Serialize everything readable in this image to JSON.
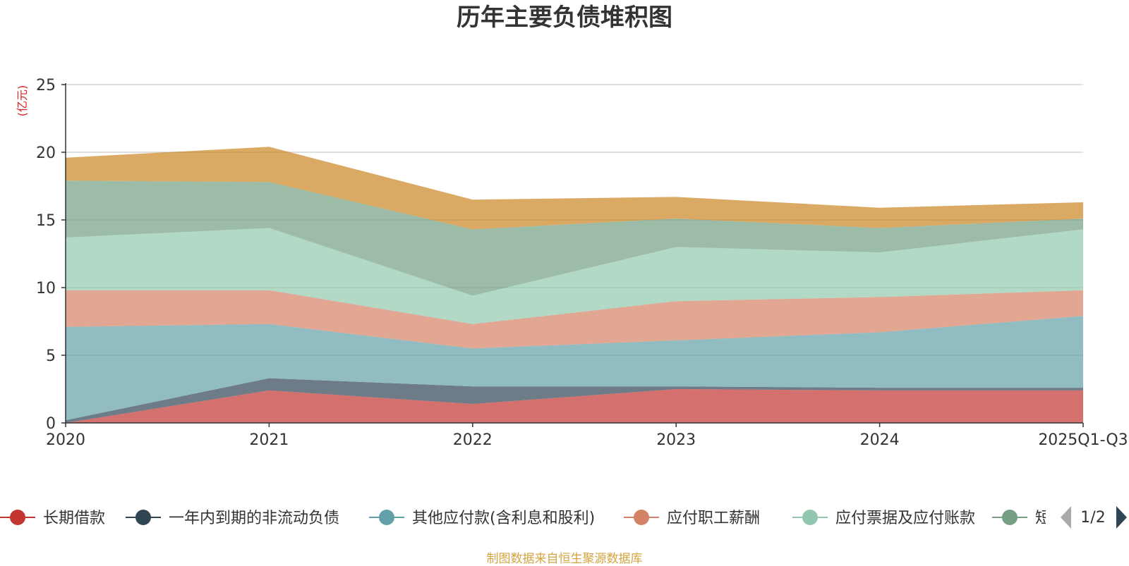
{
  "title": "历年主要负债堆积图",
  "footer": "制图数据来自恒生聚源数据库",
  "colors": {
    "long_term_loan": "#c23531",
    "current_noncurrent": "#2f4554",
    "other_payables": "#61a0a8",
    "payroll": "#d48265",
    "notes_accounts": "#91c7ae",
    "short_term": "#749f83",
    "sixth": "#ca8622",
    "unit_label": "#e02020",
    "footer": "#d4a441",
    "axis": "#333333",
    "grid": "#cccccc"
  },
  "legend": {
    "page": "1/2",
    "items": [
      {
        "label": "长期借款",
        "color": "#c23531"
      },
      {
        "label": "一年内到期的非流动负债",
        "color": "#2f4554"
      },
      {
        "label": "其他应付款(含利息和股利)",
        "color": "#61a0a8"
      },
      {
        "label": "应付职工薪酬",
        "color": "#d48265"
      },
      {
        "label": "应付票据及应付账款",
        "color": "#91c7ae"
      },
      {
        "label": "短",
        "color": "#749f83"
      }
    ]
  },
  "chart_data": {
    "type": "area",
    "stacked": true,
    "title": "历年主要负债堆积图",
    "ylabel": "(亿元)",
    "xlabel": "",
    "ylim": [
      0,
      25
    ],
    "yticks": [
      0,
      5,
      10,
      15,
      20,
      25
    ],
    "grid": true,
    "categories": [
      "2020",
      "2021",
      "2022",
      "2023",
      "2024",
      "2025Q1-Q3"
    ],
    "series": [
      {
        "name": "长期借款",
        "color": "#c23531",
        "values": [
          0.0,
          2.4,
          1.4,
          2.5,
          2.4,
          2.4
        ]
      },
      {
        "name": "一年内到期的非流动负债",
        "color": "#2f4554",
        "values": [
          0.2,
          0.9,
          1.3,
          0.2,
          0.2,
          0.2
        ]
      },
      {
        "name": "其他应付款(含利息和股利)",
        "color": "#61a0a8",
        "values": [
          6.9,
          4.0,
          2.8,
          3.4,
          4.1,
          5.3
        ]
      },
      {
        "name": "应付职工薪酬",
        "color": "#d48265",
        "values": [
          2.7,
          2.5,
          1.8,
          2.9,
          2.6,
          1.9
        ]
      },
      {
        "name": "应付票据及应付账款",
        "color": "#91c7ae",
        "values": [
          3.9,
          4.6,
          2.1,
          4.0,
          3.3,
          4.5
        ]
      },
      {
        "name": "短",
        "color": "#749f83",
        "values": [
          4.2,
          3.4,
          4.9,
          2.1,
          1.8,
          0.8
        ]
      },
      {
        "name": "",
        "color": "#ca8622",
        "values": [
          1.7,
          2.6,
          2.2,
          1.6,
          1.5,
          1.2
        ]
      }
    ]
  }
}
